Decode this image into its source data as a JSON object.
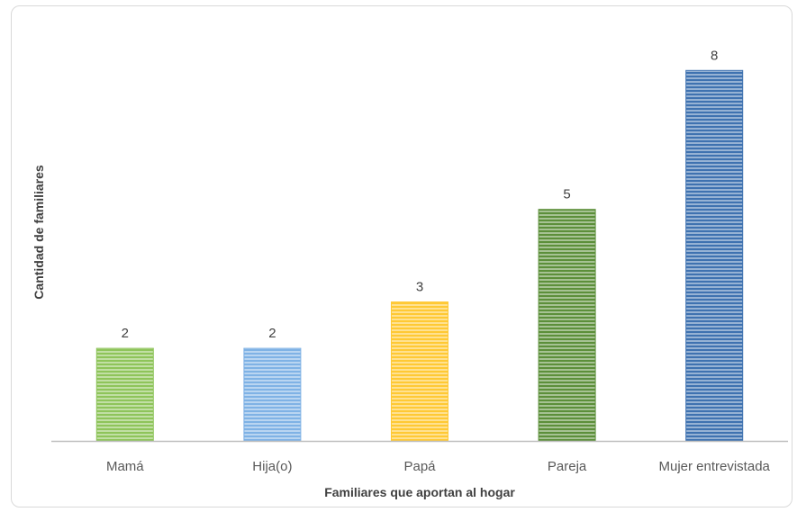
{
  "chart_data": {
    "type": "bar",
    "categories": [
      "Mamá",
      "Hija(o)",
      "Papá",
      "Pareja",
      "Mujer entrevistada"
    ],
    "values": [
      2,
      2,
      3,
      5,
      8
    ],
    "colors": [
      "#8ec45a",
      "#7fb2e5",
      "#ffc934",
      "#5c8f3a",
      "#3f72b0"
    ],
    "xlabel": "Familiares que aportan al hogar",
    "ylabel": "Cantidad de familiares",
    "ylim": [
      0,
      9.25
    ],
    "grid": false,
    "legend": "none",
    "pattern": "horizontal-stripes"
  }
}
